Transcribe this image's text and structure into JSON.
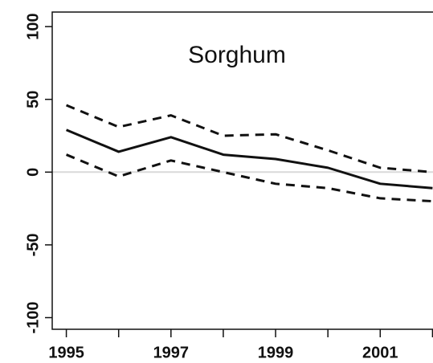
{
  "chart_data": {
    "type": "line",
    "title": "Sorghum",
    "x": [
      1995,
      1996,
      1997,
      1998,
      1999,
      2000,
      2001,
      2002
    ],
    "series": [
      {
        "color": "#111111",
        "dash": "solid",
        "values": [
          29,
          14,
          24,
          12,
          9,
          3,
          -8,
          -11
        ]
      },
      {
        "color": "#111111",
        "dash": "dashed",
        "values": [
          46,
          31,
          39,
          25,
          26,
          15,
          3,
          0
        ]
      },
      {
        "color": "#111111",
        "dash": "dashed",
        "values": [
          12,
          -3,
          8,
          0,
          -8,
          -11,
          -18,
          -20
        ]
      }
    ],
    "xlim": [
      1994.73,
      2002.27
    ],
    "xticks": [
      1995,
      1997,
      1999,
      2001
    ],
    "xminor_ticks": [
      1996,
      1998,
      2000,
      2002
    ],
    "ylim": [
      -108,
      110
    ],
    "yticks": [
      -100,
      -50,
      0,
      50,
      100
    ],
    "reference_line": {
      "value": 0,
      "color": "#d9d9d9"
    }
  }
}
